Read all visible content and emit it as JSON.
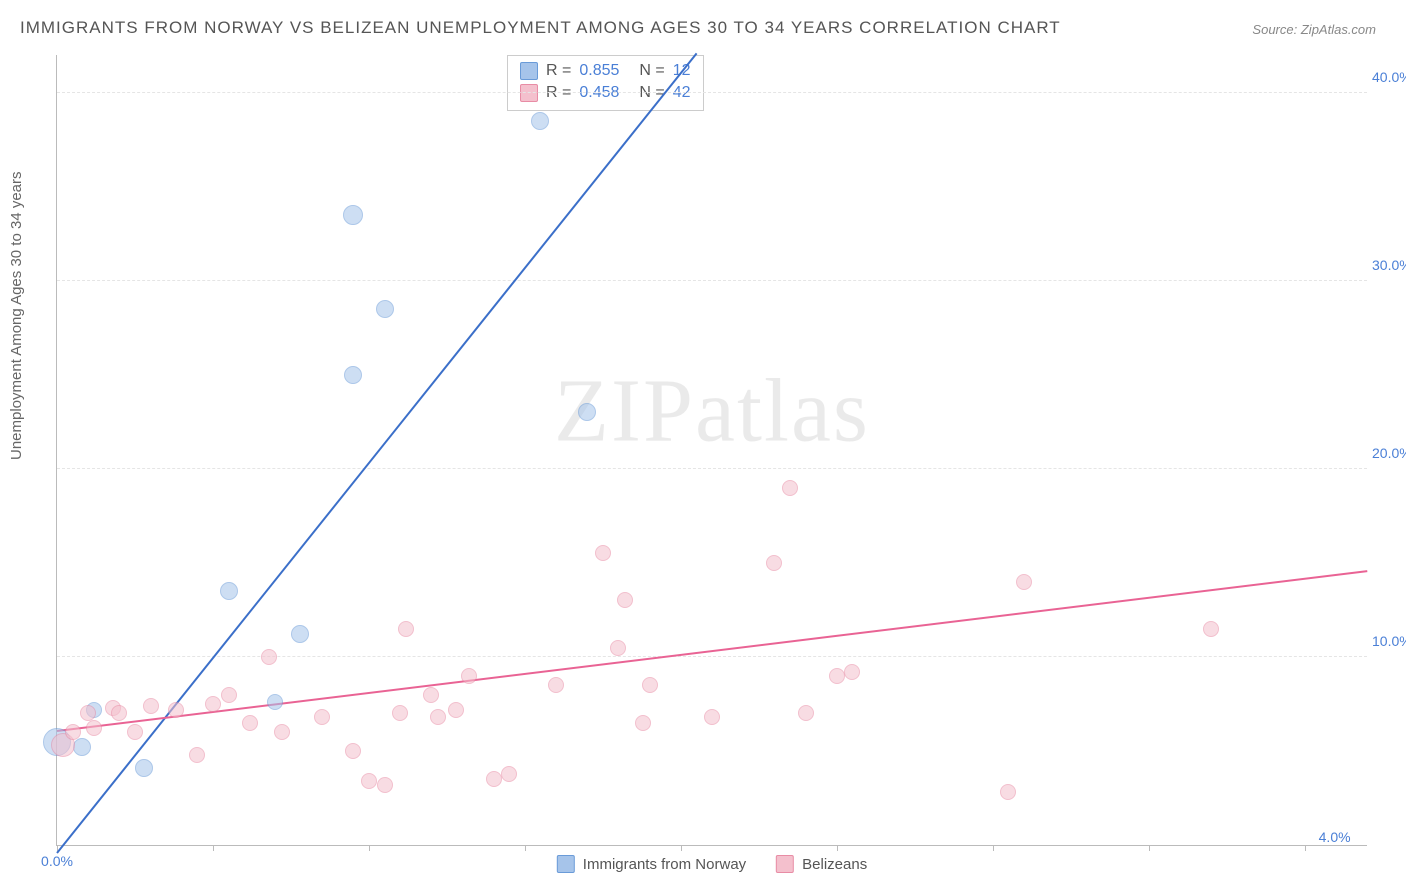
{
  "title": "IMMIGRANTS FROM NORWAY VS BELIZEAN UNEMPLOYMENT AMONG AGES 30 TO 34 YEARS CORRELATION CHART",
  "source_label": "Source:",
  "source_value": "ZipAtlas.com",
  "ylabel": "Unemployment Among Ages 30 to 34 years",
  "watermark": "ZIPatlas",
  "chart": {
    "type": "scatter-correlation",
    "background_color": "#ffffff",
    "grid_color": "#e5e5e5",
    "axis_color": "#bbbbbb",
    "tick_label_color": "#4a7fd6",
    "tick_label_fontsize": 14,
    "xlim": [
      0.0,
      4.2
    ],
    "ylim": [
      0.0,
      42.0
    ],
    "yticks": [
      10.0,
      20.0,
      30.0,
      40.0
    ],
    "ytick_labels": [
      "10.0%",
      "20.0%",
      "30.0%",
      "40.0%"
    ],
    "xtick_positions": [
      0.0,
      0.5,
      1.0,
      1.5,
      2.0,
      2.5,
      3.0,
      3.5,
      4.0
    ],
    "xtick_labels_shown": {
      "0": "0.0%",
      "8": "4.0%"
    },
    "marker_radius": 8,
    "marker_opacity": 0.55,
    "series": [
      {
        "name": "Immigrants from Norway",
        "key": "norway",
        "color_fill": "#a6c4ea",
        "color_stroke": "#6a9bd8",
        "trend_color": "#3b6fc9",
        "R": "0.855",
        "N": "12",
        "trend": {
          "x1": 0.0,
          "y1": -0.5,
          "x2": 2.05,
          "y2": 42.0
        },
        "points": [
          {
            "x": 0.0,
            "y": 5.5,
            "r": 14
          },
          {
            "x": 0.08,
            "y": 5.2,
            "r": 9
          },
          {
            "x": 0.12,
            "y": 7.2,
            "r": 8
          },
          {
            "x": 0.28,
            "y": 4.1,
            "r": 9
          },
          {
            "x": 0.55,
            "y": 13.5,
            "r": 9
          },
          {
            "x": 0.7,
            "y": 7.6,
            "r": 8
          },
          {
            "x": 0.78,
            "y": 11.2,
            "r": 9
          },
          {
            "x": 0.95,
            "y": 25.0,
            "r": 9
          },
          {
            "x": 1.05,
            "y": 28.5,
            "r": 9
          },
          {
            "x": 0.95,
            "y": 33.5,
            "r": 10
          },
          {
            "x": 1.55,
            "y": 38.5,
            "r": 9
          },
          {
            "x": 1.7,
            "y": 23.0,
            "r": 9
          }
        ]
      },
      {
        "name": "Belizeans",
        "key": "belizeans",
        "color_fill": "#f4c0cd",
        "color_stroke": "#e88ca5",
        "trend_color": "#e96394",
        "R": "0.458",
        "N": "42",
        "trend": {
          "x1": 0.0,
          "y1": 6.0,
          "x2": 4.2,
          "y2": 14.5
        },
        "points": [
          {
            "x": 0.02,
            "y": 5.3,
            "r": 12
          },
          {
            "x": 0.05,
            "y": 6.0,
            "r": 8
          },
          {
            "x": 0.1,
            "y": 7.0,
            "r": 8
          },
          {
            "x": 0.12,
            "y": 6.2,
            "r": 8
          },
          {
            "x": 0.18,
            "y": 7.3,
            "r": 8
          },
          {
            "x": 0.2,
            "y": 7.0,
            "r": 8
          },
          {
            "x": 0.25,
            "y": 6.0,
            "r": 8
          },
          {
            "x": 0.3,
            "y": 7.4,
            "r": 8
          },
          {
            "x": 0.38,
            "y": 7.2,
            "r": 8
          },
          {
            "x": 0.45,
            "y": 4.8,
            "r": 8
          },
          {
            "x": 0.5,
            "y": 7.5,
            "r": 8
          },
          {
            "x": 0.55,
            "y": 8.0,
            "r": 8
          },
          {
            "x": 0.62,
            "y": 6.5,
            "r": 8
          },
          {
            "x": 0.68,
            "y": 10.0,
            "r": 8
          },
          {
            "x": 0.72,
            "y": 6.0,
            "r": 8
          },
          {
            "x": 0.85,
            "y": 6.8,
            "r": 8
          },
          {
            "x": 0.95,
            "y": 5.0,
            "r": 8
          },
          {
            "x": 1.0,
            "y": 3.4,
            "r": 8
          },
          {
            "x": 1.05,
            "y": 3.2,
            "r": 8
          },
          {
            "x": 1.1,
            "y": 7.0,
            "r": 8
          },
          {
            "x": 1.12,
            "y": 11.5,
            "r": 8
          },
          {
            "x": 1.2,
            "y": 8.0,
            "r": 8
          },
          {
            "x": 1.22,
            "y": 6.8,
            "r": 8
          },
          {
            "x": 1.28,
            "y": 7.2,
            "r": 8
          },
          {
            "x": 1.32,
            "y": 9.0,
            "r": 8
          },
          {
            "x": 1.4,
            "y": 3.5,
            "r": 8
          },
          {
            "x": 1.45,
            "y": 3.8,
            "r": 8
          },
          {
            "x": 1.6,
            "y": 8.5,
            "r": 8
          },
          {
            "x": 1.75,
            "y": 15.5,
            "r": 8
          },
          {
            "x": 1.8,
            "y": 10.5,
            "r": 8
          },
          {
            "x": 1.82,
            "y": 13.0,
            "r": 8
          },
          {
            "x": 1.88,
            "y": 6.5,
            "r": 8
          },
          {
            "x": 1.9,
            "y": 8.5,
            "r": 8
          },
          {
            "x": 2.1,
            "y": 6.8,
            "r": 8
          },
          {
            "x": 2.3,
            "y": 15.0,
            "r": 8
          },
          {
            "x": 2.35,
            "y": 19.0,
            "r": 8
          },
          {
            "x": 2.4,
            "y": 7.0,
            "r": 8
          },
          {
            "x": 2.5,
            "y": 9.0,
            "r": 8
          },
          {
            "x": 2.55,
            "y": 9.2,
            "r": 8
          },
          {
            "x": 3.05,
            "y": 2.8,
            "r": 8
          },
          {
            "x": 3.1,
            "y": 14.0,
            "r": 8
          },
          {
            "x": 3.7,
            "y": 11.5,
            "r": 8
          }
        ]
      }
    ],
    "legend_bottom": [
      {
        "swatch_fill": "#a6c4ea",
        "swatch_stroke": "#6a9bd8",
        "label": "Immigrants from Norway"
      },
      {
        "swatch_fill": "#f4c0cd",
        "swatch_stroke": "#e88ca5",
        "label": "Belizeans"
      }
    ],
    "legend_top_labels": {
      "R": "R =",
      "N": "N ="
    }
  }
}
